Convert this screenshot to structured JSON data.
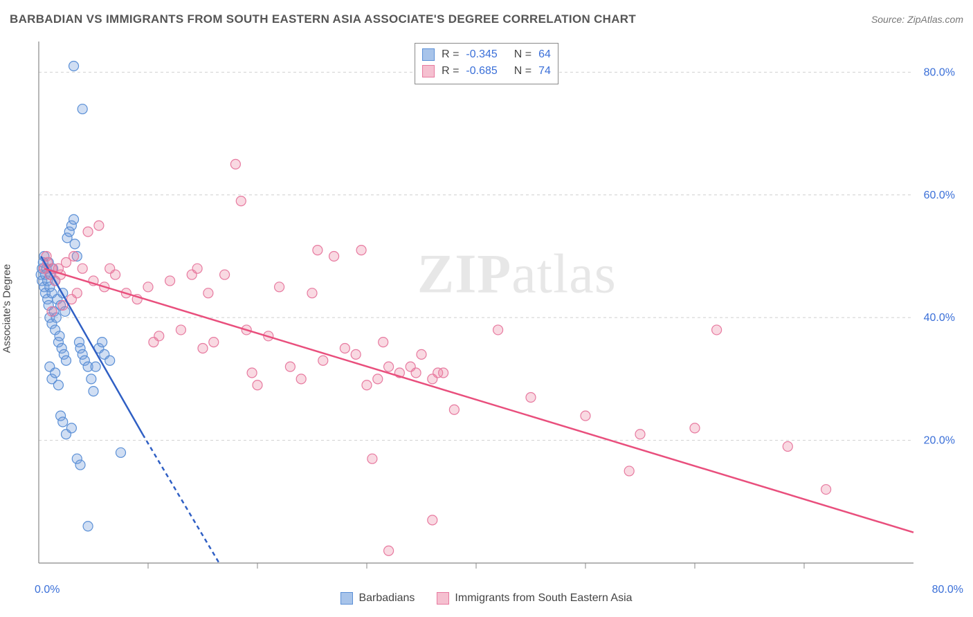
{
  "header": {
    "title": "BARBADIAN VS IMMIGRANTS FROM SOUTH EASTERN ASIA ASSOCIATE'S DEGREE CORRELATION CHART",
    "source_label": "Source: ",
    "source_value": "ZipAtlas.com"
  },
  "watermark": {
    "part1": "ZIP",
    "part2": "atlas"
  },
  "chart": {
    "type": "scatter-with-regression",
    "y_axis_label": "Associate's Degree",
    "xlim": [
      0,
      80
    ],
    "ylim": [
      0,
      85
    ],
    "x_start_label": "0.0%",
    "x_end_label": "80.0%",
    "x_label_color": "#3a6fd8",
    "y_grid_values": [
      20,
      40,
      60,
      80
    ],
    "y_grid_labels": [
      "20.0%",
      "40.0%",
      "60.0%",
      "80.0%"
    ],
    "y_label_color": "#3a6fd8",
    "x_tick_values": [
      10,
      20,
      30,
      40,
      50,
      60,
      70
    ],
    "background_color": "#ffffff",
    "grid_color": "#cfcfcf",
    "grid_dash": "4 4",
    "axis_color": "#888888",
    "marker_radius": 7,
    "marker_stroke_width": 1.2,
    "series": [
      {
        "id": "barbadians",
        "label": "Barbadians",
        "color_fill": "rgba(120,160,220,0.35)",
        "color_stroke": "#5a8fd6",
        "swatch_fill": "#a8c4ea",
        "swatch_stroke": "#5a8fd6",
        "R": "-0.345",
        "N": "64",
        "R_color": "#3a6fd8",
        "N_color": "#3a6fd8",
        "regression": {
          "solid": {
            "x1": 0.2,
            "y1": 50,
            "x2": 9.5,
            "y2": 21
          },
          "dashed": {
            "x1": 9.5,
            "y1": 21,
            "x2": 16.5,
            "y2": 0
          },
          "stroke": "#2f5fc4",
          "width": 2.5,
          "dash": "6 5"
        },
        "points": [
          [
            0.2,
            47
          ],
          [
            0.3,
            48
          ],
          [
            0.3,
            46
          ],
          [
            0.4,
            49
          ],
          [
            0.5,
            45
          ],
          [
            0.5,
            50
          ],
          [
            0.6,
            47
          ],
          [
            0.6,
            44
          ],
          [
            0.7,
            48
          ],
          [
            0.8,
            43
          ],
          [
            0.8,
            46
          ],
          [
            0.9,
            42
          ],
          [
            0.9,
            49
          ],
          [
            1.0,
            45
          ],
          [
            1.0,
            40
          ],
          [
            1.1,
            47
          ],
          [
            1.2,
            39
          ],
          [
            1.2,
            44
          ],
          [
            1.3,
            48
          ],
          [
            1.4,
            41
          ],
          [
            1.5,
            38
          ],
          [
            1.5,
            46
          ],
          [
            1.6,
            40
          ],
          [
            1.7,
            43
          ],
          [
            1.8,
            36
          ],
          [
            1.9,
            37
          ],
          [
            2.0,
            42
          ],
          [
            2.1,
            35
          ],
          [
            2.2,
            44
          ],
          [
            2.3,
            34
          ],
          [
            2.4,
            41
          ],
          [
            2.5,
            33
          ],
          [
            2.6,
            53
          ],
          [
            2.8,
            54
          ],
          [
            3.0,
            55
          ],
          [
            3.2,
            56
          ],
          [
            3.3,
            52
          ],
          [
            3.5,
            50
          ],
          [
            3.7,
            36
          ],
          [
            3.8,
            35
          ],
          [
            4.0,
            34
          ],
          [
            4.2,
            33
          ],
          [
            4.5,
            32
          ],
          [
            4.8,
            30
          ],
          [
            5.0,
            28
          ],
          [
            5.2,
            32
          ],
          [
            5.5,
            35
          ],
          [
            5.8,
            36
          ],
          [
            6.0,
            34
          ],
          [
            6.5,
            33
          ],
          [
            1.0,
            32
          ],
          [
            1.2,
            30
          ],
          [
            1.5,
            31
          ],
          [
            1.8,
            29
          ],
          [
            2.0,
            24
          ],
          [
            2.2,
            23
          ],
          [
            2.5,
            21
          ],
          [
            3.0,
            22
          ],
          [
            3.5,
            17
          ],
          [
            3.8,
            16
          ],
          [
            3.2,
            81
          ],
          [
            4.0,
            74
          ],
          [
            4.5,
            6
          ],
          [
            7.5,
            18
          ]
        ]
      },
      {
        "id": "immigrants",
        "label": "Immigrants from South Eastern Asia",
        "color_fill": "rgba(235,130,160,0.30)",
        "color_stroke": "#e7799f",
        "swatch_fill": "#f5c0d0",
        "swatch_stroke": "#e7799f",
        "R": "-0.685",
        "N": "74",
        "R_color": "#3a6fd8",
        "N_color": "#3a6fd8",
        "regression": {
          "solid": {
            "x1": 0.5,
            "y1": 48,
            "x2": 80,
            "y2": 5
          },
          "dashed": null,
          "stroke": "#e94f7d",
          "width": 2.5,
          "dash": null
        },
        "points": [
          [
            0.5,
            48
          ],
          [
            0.8,
            49
          ],
          [
            1.0,
            47
          ],
          [
            1.2,
            48
          ],
          [
            1.5,
            46
          ],
          [
            1.8,
            48
          ],
          [
            2.0,
            47
          ],
          [
            2.5,
            49
          ],
          [
            3.0,
            43
          ],
          [
            3.5,
            44
          ],
          [
            4.0,
            48
          ],
          [
            4.5,
            54
          ],
          [
            5.0,
            46
          ],
          [
            5.5,
            55
          ],
          [
            6.0,
            45
          ],
          [
            6.5,
            48
          ],
          [
            7.0,
            47
          ],
          [
            8.0,
            44
          ],
          [
            9.0,
            43
          ],
          [
            10.0,
            45
          ],
          [
            10.5,
            36
          ],
          [
            11.0,
            37
          ],
          [
            12.0,
            46
          ],
          [
            13.0,
            38
          ],
          [
            14.0,
            47
          ],
          [
            14.5,
            48
          ],
          [
            15.0,
            35
          ],
          [
            15.5,
            44
          ],
          [
            16.0,
            36
          ],
          [
            17.0,
            47
          ],
          [
            18.0,
            65
          ],
          [
            18.5,
            59
          ],
          [
            19.0,
            38
          ],
          [
            19.5,
            31
          ],
          [
            20.0,
            29
          ],
          [
            21.0,
            37
          ],
          [
            22.0,
            45
          ],
          [
            23.0,
            32
          ],
          [
            24.0,
            30
          ],
          [
            25.0,
            44
          ],
          [
            25.5,
            51
          ],
          [
            26.0,
            33
          ],
          [
            27.0,
            50
          ],
          [
            28.0,
            35
          ],
          [
            29.0,
            34
          ],
          [
            29.5,
            51
          ],
          [
            30.0,
            29
          ],
          [
            30.5,
            17
          ],
          [
            31.0,
            30
          ],
          [
            31.5,
            36
          ],
          [
            32.0,
            32
          ],
          [
            33.0,
            31
          ],
          [
            34.0,
            32
          ],
          [
            34.5,
            31
          ],
          [
            35.0,
            34
          ],
          [
            36.0,
            30
          ],
          [
            36.5,
            31
          ],
          [
            37.0,
            31
          ],
          [
            38.0,
            25
          ],
          [
            36.0,
            7
          ],
          [
            32.0,
            2
          ],
          [
            42.0,
            38
          ],
          [
            45.0,
            27
          ],
          [
            50.0,
            24
          ],
          [
            54.0,
            15
          ],
          [
            55.0,
            21
          ],
          [
            60.0,
            22
          ],
          [
            62.0,
            38
          ],
          [
            68.5,
            19
          ],
          [
            72.0,
            12
          ],
          [
            1.2,
            41
          ],
          [
            2.2,
            42
          ],
          [
            0.7,
            50
          ],
          [
            3.2,
            50
          ]
        ]
      }
    ],
    "corr_legend_border": "#888888"
  },
  "bottom_legend": {
    "items": [
      {
        "ref": "barbadians"
      },
      {
        "ref": "immigrants"
      }
    ]
  }
}
